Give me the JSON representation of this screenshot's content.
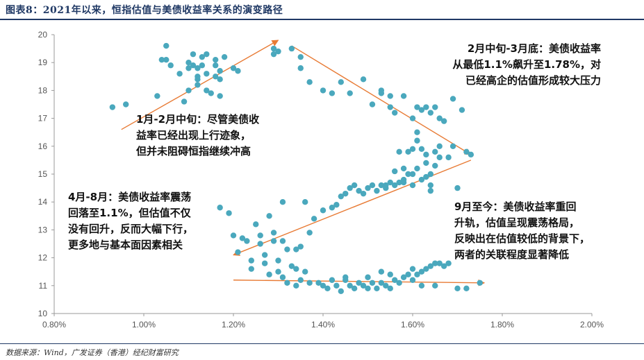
{
  "header": {
    "title": "图表8：2021年以来，恒指估值与美债收益率关系的演变路径"
  },
  "footer": {
    "source": "数据来源：Wind，广发证券（香港）经纪财富研究"
  },
  "colors": {
    "point": "#4aa8bd",
    "arrow": "#e87b35",
    "title": "#1f3864"
  },
  "annotations": [
    {
      "id": "a1",
      "lines": [
        "1月-2月中旬：尽管美债收",
        "益率已经出现上行迹象，",
        "但并未阻碍恒指继续冲高"
      ]
    },
    {
      "id": "a2",
      "lines": [
        "2月中旬-3月底：美债收益率",
        "从最低1.1%飙升至1.78%，对",
        "已经高企的估值形成较大压力"
      ]
    },
    {
      "id": "a3",
      "lines": [
        "4月-8月：美债收益率震荡",
        "回落至1.1%，但估值不仅",
        "没有回升，反而大幅下行，",
        "更多地与基本面因素相关"
      ]
    },
    {
      "id": "a4",
      "lines": [
        "9月至今：美债收益率重回",
        "升轨，估值呈现震荡格局，",
        "反映出在估值较低的背景下，",
        "两者的关联程度显著降低"
      ]
    }
  ],
  "chart_data": {
    "type": "scatter",
    "title": "",
    "xlabel": "",
    "ylabel": "",
    "xlim": [
      0.8,
      2.0
    ],
    "ylim": [
      10,
      20
    ],
    "x_ticks": [
      "0.80%",
      "1.00%",
      "1.20%",
      "1.40%",
      "1.60%",
      "1.80%",
      "2.00%"
    ],
    "y_ticks": [
      "10",
      "11",
      "12",
      "13",
      "14",
      "15",
      "16",
      "17",
      "18",
      "19",
      "20"
    ],
    "grid": false,
    "legend": "none",
    "points": [
      [
        0.93,
        17.4
      ],
      [
        0.96,
        17.5
      ],
      [
        1.03,
        17.8
      ],
      [
        1.04,
        19.1
      ],
      [
        1.05,
        19.1
      ],
      [
        1.05,
        19.6
      ],
      [
        1.06,
        18.9
      ],
      [
        1.08,
        18.6
      ],
      [
        1.09,
        17.6
      ],
      [
        1.1,
        18.8
      ],
      [
        1.1,
        19.0
      ],
      [
        1.11,
        18.9
      ],
      [
        1.11,
        19.3
      ],
      [
        1.12,
        18.2
      ],
      [
        1.12,
        18.4
      ],
      [
        1.12,
        18.8
      ],
      [
        1.13,
        18.9
      ],
      [
        1.13,
        19.2
      ],
      [
        1.14,
        18.6
      ],
      [
        1.14,
        19.3
      ],
      [
        1.15,
        17.9
      ],
      [
        1.16,
        18.5
      ],
      [
        1.16,
        18.9
      ],
      [
        1.16,
        19.1
      ],
      [
        1.17,
        17.8
      ],
      [
        1.17,
        18.4
      ],
      [
        1.17,
        18.7
      ],
      [
        1.18,
        19.2
      ],
      [
        1.2,
        18.8
      ],
      [
        1.21,
        18.7
      ],
      [
        1.12,
        18.5
      ],
      [
        1.14,
        18.0
      ],
      [
        1.1,
        18.0
      ],
      [
        1.29,
        19.5
      ],
      [
        1.29,
        19.3
      ],
      [
        1.3,
        19.4
      ],
      [
        1.33,
        19.5
      ],
      [
        1.35,
        19.2
      ],
      [
        1.35,
        18.8
      ],
      [
        1.37,
        18.3
      ],
      [
        1.4,
        18.0
      ],
      [
        1.42,
        17.9
      ],
      [
        1.44,
        18.3
      ],
      [
        1.46,
        17.9
      ],
      [
        1.49,
        18.4
      ],
      [
        1.51,
        17.5
      ],
      [
        1.53,
        17.9
      ],
      [
        1.53,
        18.0
      ],
      [
        1.55,
        17.8
      ],
      [
        1.55,
        17.4
      ],
      [
        1.56,
        17.2
      ],
      [
        1.58,
        17.8
      ],
      [
        1.6,
        17.0
      ],
      [
        1.61,
        17.4
      ],
      [
        1.62,
        17.3
      ],
      [
        1.63,
        17.4
      ],
      [
        1.64,
        17.2
      ],
      [
        1.65,
        17.4
      ],
      [
        1.66,
        17.0
      ],
      [
        1.67,
        16.9
      ],
      [
        1.69,
        17.7
      ],
      [
        1.71,
        17.3
      ],
      [
        1.72,
        15.8
      ],
      [
        1.73,
        15.7
      ],
      [
        1.17,
        13.8
      ],
      [
        1.19,
        13.6
      ],
      [
        1.2,
        12.8
      ],
      [
        1.21,
        12.2
      ],
      [
        1.22,
        12.7
      ],
      [
        1.23,
        12.6
      ],
      [
        1.24,
        11.9
      ],
      [
        1.24,
        11.6
      ],
      [
        1.25,
        13.2
      ],
      [
        1.26,
        12.8
      ],
      [
        1.26,
        12.5
      ],
      [
        1.27,
        12.1
      ],
      [
        1.27,
        11.8
      ],
      [
        1.28,
        13.5
      ],
      [
        1.28,
        11.4
      ],
      [
        1.29,
        12.9
      ],
      [
        1.29,
        12.6
      ],
      [
        1.3,
        11.9
      ],
      [
        1.3,
        11.5
      ],
      [
        1.31,
        14.0
      ],
      [
        1.31,
        12.6
      ],
      [
        1.31,
        11.3
      ],
      [
        1.32,
        12.3
      ],
      [
        1.32,
        11.1
      ],
      [
        1.33,
        11.7
      ],
      [
        1.34,
        12.3
      ],
      [
        1.34,
        11.6
      ],
      [
        1.34,
        11.0
      ],
      [
        1.35,
        12.4
      ],
      [
        1.35,
        11.2
      ],
      [
        1.36,
        14.0
      ],
      [
        1.36,
        11.5
      ],
      [
        1.37,
        11.1
      ],
      [
        1.37,
        12.9
      ],
      [
        1.38,
        13.4
      ],
      [
        1.4,
        13.7
      ],
      [
        1.42,
        13.8
      ],
      [
        1.43,
        13.9
      ],
      [
        1.44,
        14.2
      ],
      [
        1.45,
        14.3
      ],
      [
        1.46,
        14.5
      ],
      [
        1.47,
        14.6
      ],
      [
        1.48,
        14.4
      ],
      [
        1.49,
        14.3
      ],
      [
        1.5,
        14.5
      ],
      [
        1.51,
        14.6
      ],
      [
        1.52,
        14.4
      ],
      [
        1.53,
        14.6
      ],
      [
        1.54,
        14.5
      ],
      [
        1.55,
        14.7
      ],
      [
        1.56,
        14.6
      ],
      [
        1.57,
        14.7
      ],
      [
        1.58,
        14.8
      ],
      [
        1.59,
        15.0
      ],
      [
        1.6,
        14.6
      ],
      [
        1.6,
        15.0
      ],
      [
        1.61,
        15.2
      ],
      [
        1.62,
        14.8
      ],
      [
        1.63,
        14.9
      ],
      [
        1.64,
        15.0
      ],
      [
        1.64,
        14.4
      ],
      [
        1.65,
        15.3
      ],
      [
        1.66,
        15.6
      ],
      [
        1.56,
        15.1
      ],
      [
        1.57,
        15.8
      ],
      [
        1.58,
        15.2
      ],
      [
        1.59,
        15.8
      ],
      [
        1.6,
        15.9
      ],
      [
        1.61,
        16.2
      ],
      [
        1.61,
        16.5
      ],
      [
        1.62,
        15.9
      ],
      [
        1.63,
        15.7
      ],
      [
        1.65,
        15.8
      ],
      [
        1.66,
        16.0
      ],
      [
        1.68,
        15.6
      ],
      [
        1.69,
        16.0
      ],
      [
        1.7,
        14.5
      ],
      [
        1.63,
        15.4
      ],
      [
        1.64,
        14.6
      ],
      [
        1.58,
        14.7
      ],
      [
        1.54,
        14.6
      ],
      [
        1.39,
        11.1
      ],
      [
        1.4,
        11.0
      ],
      [
        1.41,
        10.9
      ],
      [
        1.42,
        11.2
      ],
      [
        1.43,
        11.0
      ],
      [
        1.44,
        10.8
      ],
      [
        1.45,
        11.2
      ],
      [
        1.46,
        11.0
      ],
      [
        1.47,
        10.9
      ],
      [
        1.48,
        11.1
      ],
      [
        1.49,
        11.0
      ],
      [
        1.5,
        10.9
      ],
      [
        1.51,
        11.1
      ],
      [
        1.52,
        10.9
      ],
      [
        1.53,
        11.1
      ],
      [
        1.54,
        11.0
      ],
      [
        1.55,
        10.9
      ],
      [
        1.56,
        11.2
      ],
      [
        1.57,
        11.1
      ],
      [
        1.58,
        11.3
      ],
      [
        1.59,
        11.4
      ],
      [
        1.6,
        11.2
      ],
      [
        1.61,
        11.4
      ],
      [
        1.62,
        11.5
      ],
      [
        1.63,
        11.6
      ],
      [
        1.64,
        11.7
      ],
      [
        1.65,
        11.8
      ],
      [
        1.66,
        11.8
      ],
      [
        1.67,
        11.7
      ],
      [
        1.68,
        11.8
      ],
      [
        1.7,
        10.9
      ],
      [
        1.72,
        10.9
      ],
      [
        1.75,
        11.1
      ],
      [
        1.62,
        11.0
      ],
      [
        1.65,
        11.0
      ],
      [
        1.55,
        11.4
      ],
      [
        1.5,
        11.3
      ],
      [
        1.45,
        11.3
      ],
      [
        1.53,
        11.5
      ],
      [
        1.6,
        11.6
      ]
    ],
    "trend_arrows": [
      {
        "from": [
          0.95,
          16.6
        ],
        "to": [
          1.3,
          19.8
        ]
      },
      {
        "from": [
          1.33,
          19.6
        ],
        "to": [
          1.73,
          15.7
        ]
      },
      {
        "from": [
          1.73,
          15.5
        ],
        "to": [
          1.2,
          12.1
        ]
      },
      {
        "from": [
          1.2,
          11.2
        ],
        "to": [
          1.76,
          11.1
        ]
      }
    ]
  }
}
